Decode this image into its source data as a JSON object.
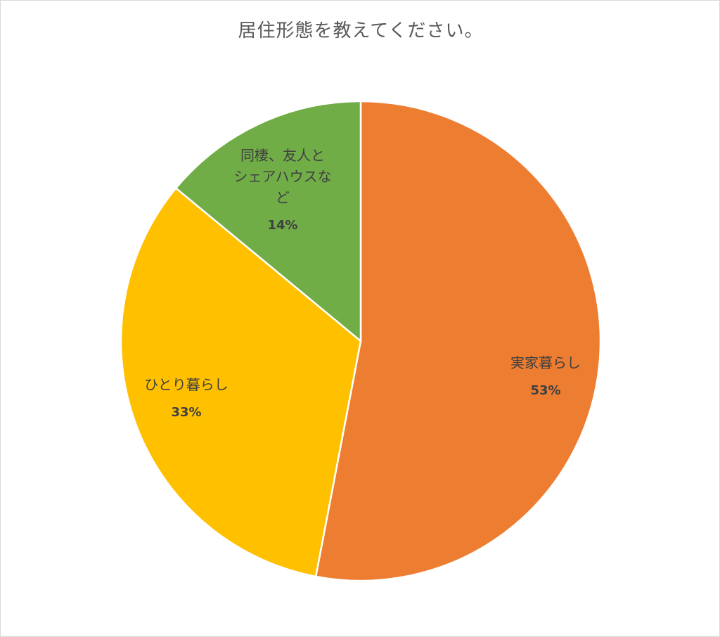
{
  "chart_data": {
    "type": "pie",
    "title": "居住形態を教えてください。",
    "start_angle_deg": 0,
    "direction": "clockwise",
    "slices": [
      {
        "label_lines": [
          "実家暮らし"
        ],
        "value": 53,
        "value_label": "53%",
        "color": "#ED7D31"
      },
      {
        "label_lines": [
          "ひとり暮らし"
        ],
        "value": 33,
        "value_label": "33%",
        "color": "#FFC000"
      },
      {
        "label_lines": [
          "同棲、友人と",
          "シェアハウスな",
          "ど"
        ],
        "value": 14,
        "value_label": "14%",
        "color": "#70AD47"
      }
    ]
  }
}
